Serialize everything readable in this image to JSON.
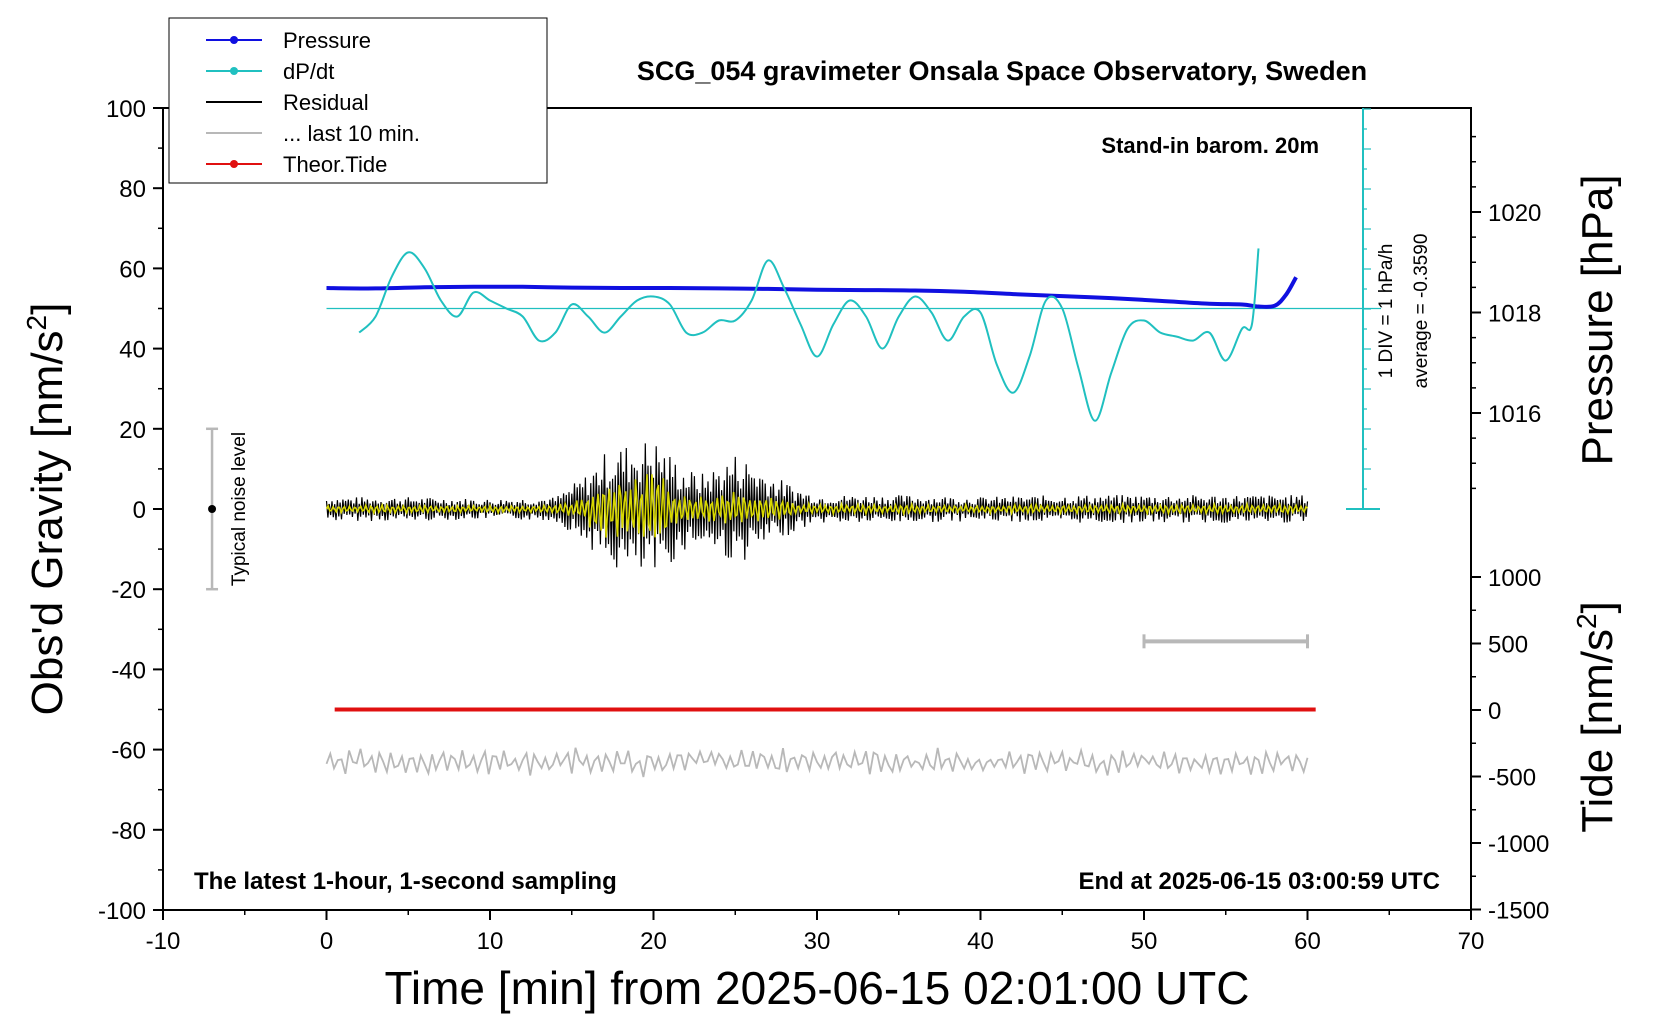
{
  "chart_data": {
    "type": "line",
    "title": "SCG_054 gravimeter Onsala Space Observatory, Sweden",
    "xlabel": "Time [min] from 2025-06-15 02:01:00 UTC",
    "ylabel_left": "Obs'd Gravity [nm/s",
    "ylabel_left_sup": "2",
    "ylabel_left_end": "]",
    "ylabel_right_pressure": "Pressure [hPa]",
    "ylabel_right_tide": "Tide [nm/s",
    "ylabel_right_tide_sup": "2",
    "ylabel_right_tide_end": "]",
    "xlim": [
      -10,
      70
    ],
    "ylim": [
      -100,
      100
    ],
    "x_ticks": [
      -10,
      0,
      10,
      20,
      30,
      40,
      50,
      60,
      70
    ],
    "x_tick_labels": [
      "-10",
      "0",
      "10",
      "20",
      "30",
      "40",
      "50",
      "60",
      "70"
    ],
    "y_ticks": [
      -100,
      -80,
      -60,
      -40,
      -20,
      0,
      20,
      40,
      60,
      80,
      100
    ],
    "y_tick_labels": [
      "-100",
      "-80",
      "-60",
      "-40",
      "-20",
      "0",
      "20",
      "40",
      "60",
      "80",
      "100"
    ],
    "pressure_axis": {
      "ticks": [
        1016,
        1018,
        1020
      ],
      "tick_labels": [
        "1016",
        "1018",
        "1020"
      ]
    },
    "tide_axis": {
      "ticks": [
        1000,
        500,
        0,
        -500,
        -1000,
        -1500
      ],
      "tick_labels": [
        "1000",
        "500",
        "0",
        "-500",
        "-1000",
        "-1500"
      ]
    },
    "legend": {
      "placement": "top-left",
      "entries": [
        {
          "label": "Pressure",
          "color": "#1010e0",
          "marker": true
        },
        {
          "label": "dP/dt",
          "color": "#20c0c0",
          "marker": true
        },
        {
          "label": "Residual",
          "color": "#000000",
          "marker": false
        },
        {
          "label": "... last 10 min.",
          "color": "#b8b8b8",
          "marker": false
        },
        {
          "label": "Theor.Tide",
          "color": "#e01010",
          "marker": true
        }
      ]
    },
    "annotations": {
      "barometer": "Stand-in barom. 20m",
      "scale_label": "1 DIV = 1 hPa/h",
      "average_label": "average = -0.3590",
      "noise_label": "Typical noise level",
      "bottom_left": "The latest 1-hour, 1-second sampling",
      "bottom_right": "End at 2025-06-15 03:00:59 UTC"
    },
    "noise_bar": {
      "x": -7,
      "y_low": -20,
      "y_high": 20,
      "center": 0
    },
    "last10_bar": {
      "x_start": 50,
      "x_end": 60,
      "y": -33
    },
    "dpdt_baseline": 50,
    "series": [
      {
        "name": "Pressure",
        "color": "#1010e0",
        "x": [
          0,
          3,
          6,
          9,
          12,
          15,
          18,
          21,
          24,
          27,
          30,
          33,
          36,
          39,
          42,
          45,
          48,
          51,
          54,
          56,
          57,
          58,
          58.7,
          59.3
        ],
        "y": [
          55.1,
          55.0,
          55.3,
          55.4,
          55.4,
          55.2,
          55.1,
          55.1,
          55.0,
          54.9,
          54.7,
          54.6,
          54.5,
          54.2,
          53.6,
          53.1,
          52.6,
          51.9,
          51.2,
          51.0,
          50.5,
          50.7,
          53.5,
          57.8
        ]
      },
      {
        "name": "dP/dt",
        "color": "#20c0c0",
        "x": [
          2,
          3,
          4,
          5,
          6,
          7,
          8,
          9,
          10,
          11,
          12,
          13,
          14,
          15,
          16,
          17,
          18,
          19,
          20,
          21,
          22,
          23,
          24,
          25,
          26,
          27,
          28,
          29,
          30,
          31,
          32,
          33,
          34,
          35,
          36,
          37,
          38,
          39,
          40,
          41,
          42,
          43,
          44,
          45,
          46,
          47,
          48,
          49,
          50,
          51,
          52,
          53,
          54,
          55,
          56,
          56.6,
          57
        ],
        "y": [
          44,
          48,
          58,
          64,
          60,
          52,
          48,
          54,
          52,
          50,
          48,
          42,
          44,
          51,
          48,
          44,
          48,
          52,
          53,
          51,
          44,
          44,
          47,
          47,
          52,
          62,
          55,
          46,
          38,
          46,
          52,
          48,
          40,
          48,
          53,
          49,
          42,
          48,
          49,
          36,
          29,
          38,
          52,
          50,
          35,
          22,
          34,
          45,
          47,
          44,
          43,
          42,
          44,
          37,
          45,
          46,
          65
        ]
      },
      {
        "name": "Residual",
        "color": "#000000",
        "x": [
          0,
          60
        ],
        "y": [
          0,
          0
        ]
      },
      {
        "name": "... last 10 min.",
        "color": "#b8b8b8",
        "x": [
          0,
          60
        ],
        "y": [
          -63,
          -63
        ]
      },
      {
        "name": "Theor.Tide",
        "color": "#e01010",
        "x": [
          0.5,
          60.5
        ],
        "y": [
          -50,
          -50
        ]
      }
    ],
    "residual_envelope": {
      "x": [
        0,
        5,
        10,
        14,
        15,
        16,
        17,
        18,
        19,
        20,
        21,
        22,
        23,
        24,
        25,
        26,
        27,
        28,
        29,
        30,
        35,
        40,
        45,
        50,
        55,
        60
      ],
      "amplitude": [
        3,
        3,
        2.5,
        3,
        6,
        9,
        14,
        16,
        17,
        18,
        14,
        10,
        9,
        11,
        14,
        12,
        9,
        7,
        5,
        3.5,
        3.5,
        3,
        3.5,
        3.5,
        3.5,
        3.5
      ]
    }
  }
}
